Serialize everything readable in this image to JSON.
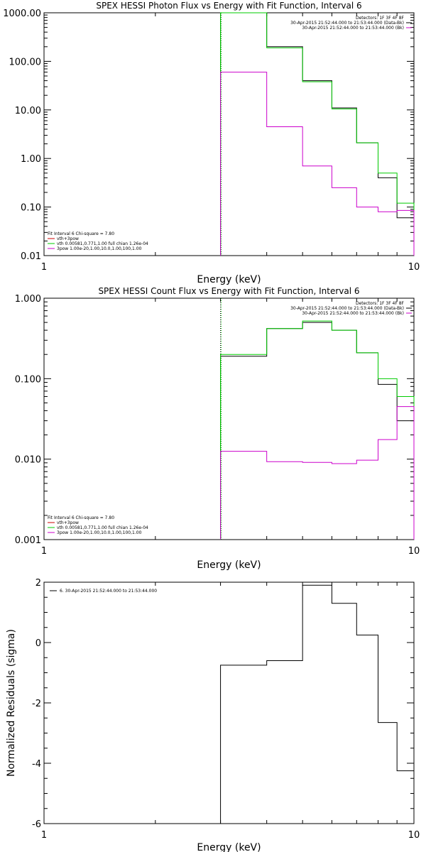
{
  "chart_data": [
    {
      "type": "line",
      "title": "SPEX HESSI Photon Flux vs Energy with Fit Function, Interval 6",
      "xlabel": "Energy (keV)",
      "ylabel": "",
      "x_scale": "log",
      "y_scale": "log",
      "xlim": [
        1,
        10
      ],
      "ylim": [
        0.01,
        1000
      ],
      "x_ticks": [
        1,
        10
      ],
      "x_tick_labels": [
        "1",
        "10"
      ],
      "y_ticks": [
        0.01,
        0.1,
        1,
        10,
        100,
        1000
      ],
      "y_tick_labels": [
        "0.01",
        "0.10",
        "1.00",
        "10.00",
        "100.00",
        "1000.00"
      ],
      "bin_edges": [
        3,
        4,
        5,
        6,
        7,
        8,
        9,
        10
      ],
      "series": [
        {
          "color": "#000000",
          "values": [
            1000,
            200,
            40,
            11,
            2.1,
            0.4,
            0.06
          ]
        },
        {
          "color": "#00cc00",
          "values": [
            1000,
            190,
            38,
            10.5,
            2.1,
            0.5,
            0.12
          ]
        },
        {
          "color": "#cc00cc",
          "values": [
            60,
            4.5,
            0.7,
            0.25,
            0.1,
            0.08,
            0.085
          ]
        }
      ],
      "marker_line": {
        "x": 3,
        "color": "#00aa00"
      },
      "legend_top": [
        {
          "text": "Detectors: 1F 3F 4F 8F",
          "color": ""
        },
        {
          "text": "30-Apr-2015 21:52:44.000 to 21:53:44.000 (Data-Bk)",
          "color": "#000000"
        },
        {
          "text": "30-Apr-2015 21:52:44.000 to 21:53:44.000 (Bk)",
          "color": "#cc00cc"
        }
      ],
      "legend_bottom": [
        {
          "text": "Fit Interval 6   Chi-square = 7.80",
          "color": ""
        },
        {
          "text": "vth+3pow",
          "color": "#cc0000"
        },
        {
          "text": "vth 0.00581,0.771,1.00  full chian 1.26e-04",
          "color": "#00cc00"
        },
        {
          "text": "3pow 1.00e-20,1.00,10.0,1.00,100,1.00",
          "color": "#cc00cc"
        }
      ]
    },
    {
      "type": "line",
      "title": "SPEX HESSI Count Flux vs Energy with Fit Function, Interval 6",
      "xlabel": "Energy (keV)",
      "ylabel": "",
      "x_scale": "log",
      "y_scale": "log",
      "xlim": [
        1,
        10
      ],
      "ylim": [
        0.001,
        1
      ],
      "x_ticks": [
        1,
        10
      ],
      "x_tick_labels": [
        "1",
        "10"
      ],
      "y_ticks": [
        0.001,
        0.01,
        0.1,
        1
      ],
      "y_tick_labels": [
        "0.001",
        "0.010",
        "0.100",
        "1.000"
      ],
      "bin_edges": [
        3,
        4,
        5,
        6,
        7,
        8,
        9,
        10
      ],
      "series": [
        {
          "color": "#000000",
          "values": [
            0.19,
            0.42,
            0.5,
            0.4,
            0.21,
            0.085,
            0.03
          ]
        },
        {
          "color": "#00cc00",
          "values": [
            0.2,
            0.42,
            0.52,
            0.4,
            0.21,
            0.1,
            0.06
          ]
        },
        {
          "color": "#cc00cc",
          "values": [
            0.0125,
            0.0093,
            0.0091,
            0.0088,
            0.0097,
            0.0175,
            0.045
          ]
        }
      ],
      "marker_line": {
        "x": 3,
        "color": "#00aa00"
      },
      "legend_top": [
        {
          "text": "Detectors: 1F 3F 4F 8F",
          "color": ""
        },
        {
          "text": "30-Apr-2015 21:52:44.000 to 21:53:44.000 (Data-Bk)",
          "color": "#000000"
        },
        {
          "text": "30-Apr-2015 21:52:44.000 to 21:53:44.000 (Bk)",
          "color": "#cc00cc"
        }
      ],
      "legend_bottom": [
        {
          "text": "Fit Interval 6   Chi-square = 7.80",
          "color": ""
        },
        {
          "text": "vth+3pow",
          "color": "#cc0000"
        },
        {
          "text": "vth 0.00581,0.771,1.00  full chian 1.26e-04",
          "color": "#00cc00"
        },
        {
          "text": "3pow 1.00e-20,1.00,10.0,1.00,100,1.00",
          "color": "#cc00cc"
        }
      ]
    },
    {
      "type": "line",
      "title": "",
      "xlabel": "Energy (keV)",
      "ylabel": "Normalized Residuals (sigma)",
      "x_scale": "log",
      "y_scale": "linear",
      "xlim": [
        1,
        10
      ],
      "ylim": [
        -6,
        2
      ],
      "x_ticks": [
        1,
        10
      ],
      "x_tick_labels": [
        "1",
        "10"
      ],
      "y_ticks": [
        -6,
        -4,
        -2,
        0,
        2
      ],
      "y_tick_labels": [
        "-6",
        "-4",
        "-2",
        "0",
        "2"
      ],
      "bin_edges": [
        3,
        4,
        5,
        6,
        7,
        8,
        9,
        10
      ],
      "series": [
        {
          "color": "#000000",
          "values": [
            -0.75,
            -0.6,
            1.9,
            1.3,
            0.25,
            -2.65,
            -4.25
          ]
        }
      ],
      "residual_drop": true,
      "legend_top": [
        {
          "text": "6. 30-Apr-2015 21:52:44.000 to 21:53:44.000",
          "color": "#000000"
        }
      ]
    }
  ]
}
